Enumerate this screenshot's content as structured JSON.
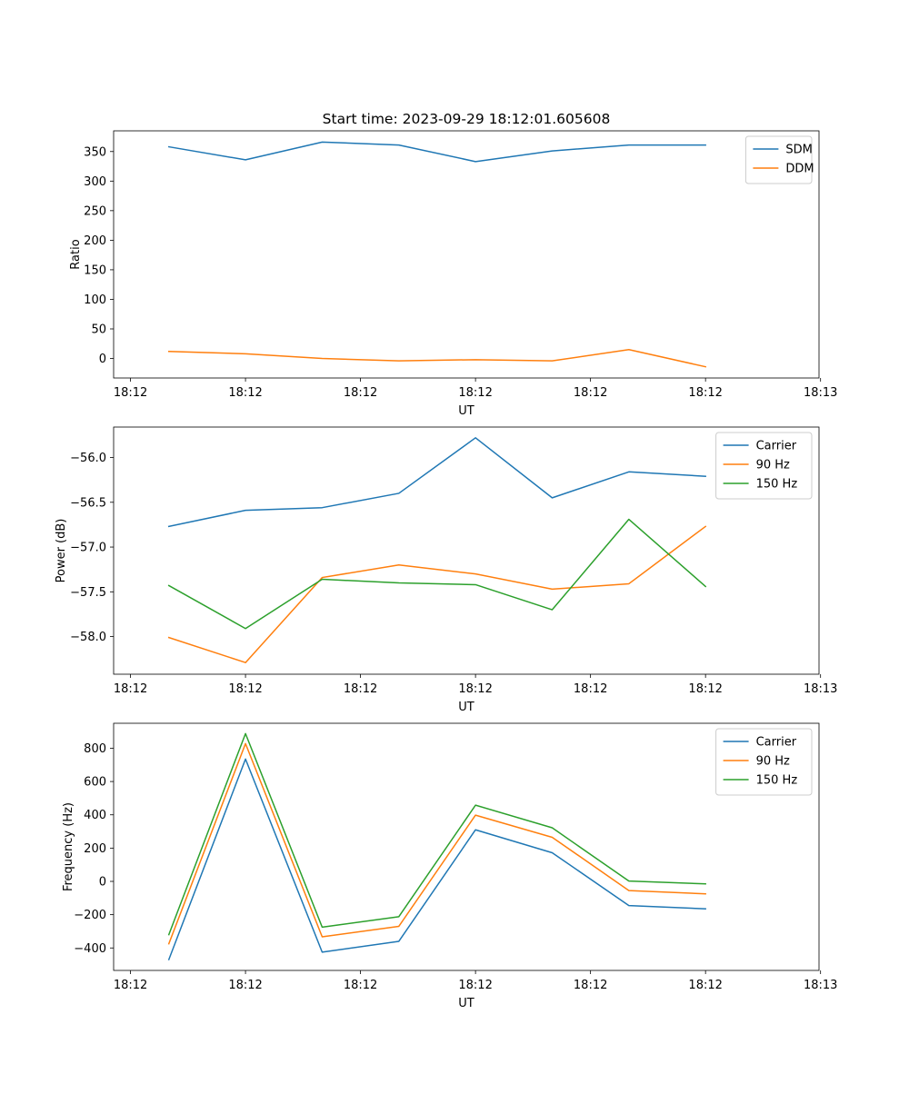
{
  "figure_title": "Start time: 2023-09-29 18:12:01.605608",
  "colors": {
    "blue": "#1f77b4",
    "orange": "#ff7f0e",
    "green": "#2ca02c"
  },
  "chart_data": [
    {
      "type": "line",
      "title": "Start time: 2023-09-29 18:12:01.605608",
      "xlabel": "UT",
      "ylabel": "Ratio",
      "x": [
        1,
        2,
        3,
        4,
        5,
        6,
        7,
        8
      ],
      "xlim": [
        0.28,
        9.48
      ],
      "ylim": [
        -33,
        385
      ],
      "x_ticks": [
        0.5,
        2.0,
        3.5,
        5.0,
        6.5,
        8.0,
        9.5
      ],
      "x_tick_labels": [
        "18:12",
        "18:12",
        "18:12",
        "18:12",
        "18:12",
        "18:12",
        "18:13"
      ],
      "y_ticks": [
        0,
        50,
        100,
        150,
        200,
        250,
        300,
        350
      ],
      "y_tick_labels": [
        "0",
        "50",
        "100",
        "150",
        "200",
        "250",
        "300",
        "350"
      ],
      "legend_position": "top-right",
      "series": [
        {
          "name": "SDM",
          "color": "#1f77b4",
          "values": [
            358,
            336,
            366,
            361,
            333,
            351,
            361,
            361
          ]
        },
        {
          "name": "DDM",
          "color": "#ff7f0e",
          "values": [
            12,
            8,
            0,
            -4,
            -2,
            -4,
            15,
            -14
          ]
        }
      ]
    },
    {
      "type": "line",
      "title": "",
      "xlabel": "UT",
      "ylabel": "Power (dB)",
      "x": [
        1,
        2,
        3,
        4,
        5,
        6,
        7,
        8
      ],
      "xlim": [
        0.28,
        9.48
      ],
      "ylim": [
        -58.42,
        -55.66
      ],
      "x_ticks": [
        0.5,
        2.0,
        3.5,
        5.0,
        6.5,
        8.0,
        9.5
      ],
      "x_tick_labels": [
        "18:12",
        "18:12",
        "18:12",
        "18:12",
        "18:12",
        "18:12",
        "18:13"
      ],
      "y_ticks": [
        -58.0,
        -57.5,
        -57.0,
        -56.5,
        -56.0
      ],
      "y_tick_labels": [
        "−58.0",
        "−57.5",
        "−57.0",
        "−56.5",
        "−56.0"
      ],
      "legend_position": "top-right",
      "series": [
        {
          "name": "Carrier",
          "color": "#1f77b4",
          "values": [
            -56.77,
            -56.59,
            -56.56,
            -56.4,
            -55.78,
            -56.45,
            -56.16,
            -56.21
          ]
        },
        {
          "name": "90 Hz",
          "color": "#ff7f0e",
          "values": [
            -58.01,
            -58.29,
            -57.34,
            -57.2,
            -57.3,
            -57.47,
            -57.41,
            -56.77
          ]
        },
        {
          "name": "150 Hz",
          "color": "#2ca02c",
          "values": [
            -57.43,
            -57.91,
            -57.36,
            -57.4,
            -57.42,
            -57.7,
            -56.69,
            -57.44
          ]
        }
      ]
    },
    {
      "type": "line",
      "title": "",
      "xlabel": "UT",
      "ylabel": "Frequency (Hz)",
      "x": [
        1,
        2,
        3,
        4,
        5,
        6,
        7,
        8
      ],
      "xlim": [
        0.28,
        9.48
      ],
      "ylim": [
        -535,
        950
      ],
      "x_ticks": [
        0.5,
        2.0,
        3.5,
        5.0,
        6.5,
        8.0,
        9.5
      ],
      "x_tick_labels": [
        "18:12",
        "18:12",
        "18:12",
        "18:12",
        "18:12",
        "18:12",
        "18:13"
      ],
      "y_ticks": [
        -400,
        -200,
        0,
        200,
        400,
        600,
        800
      ],
      "y_tick_labels": [
        "−400",
        "−200",
        "0",
        "200",
        "400",
        "600",
        "800"
      ],
      "legend_position": "top-right",
      "series": [
        {
          "name": "Carrier",
          "color": "#1f77b4",
          "values": [
            -470,
            735,
            -425,
            -360,
            310,
            172,
            -145,
            -165
          ]
        },
        {
          "name": "90 Hz",
          "color": "#ff7f0e",
          "values": [
            -375,
            828,
            -333,
            -270,
            398,
            265,
            -55,
            -75
          ]
        },
        {
          "name": "150 Hz",
          "color": "#2ca02c",
          "values": [
            -320,
            888,
            -275,
            -212,
            458,
            322,
            2,
            -15
          ]
        }
      ]
    }
  ]
}
